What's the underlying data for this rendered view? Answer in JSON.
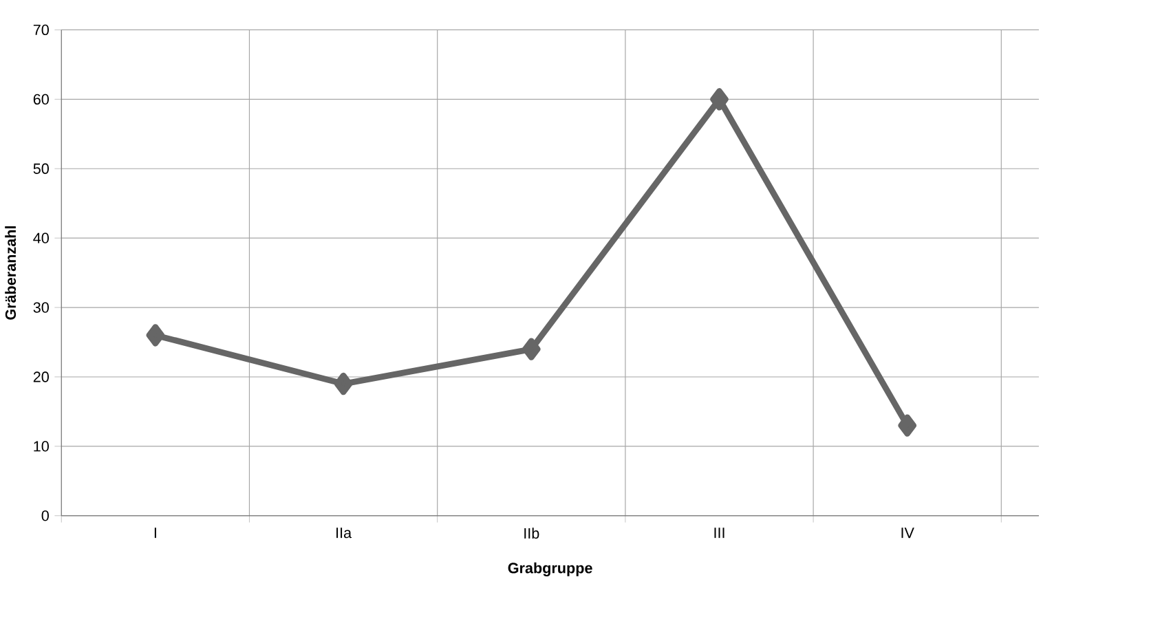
{
  "chart_data": {
    "type": "line",
    "xlabel": "Grabgruppe",
    "ylabel": "Gräberanzahl",
    "categories": [
      "I",
      "IIa",
      "IIb",
      "III",
      "IV"
    ],
    "series": [
      {
        "color": "#666666",
        "values": [
          26,
          19,
          24,
          60,
          13
        ]
      }
    ],
    "ylim": [
      0,
      70
    ],
    "yticks": [
      0,
      10,
      20,
      30,
      40,
      50,
      60,
      70
    ],
    "grid": true,
    "marker": "diamond",
    "line_style": "solid"
  }
}
